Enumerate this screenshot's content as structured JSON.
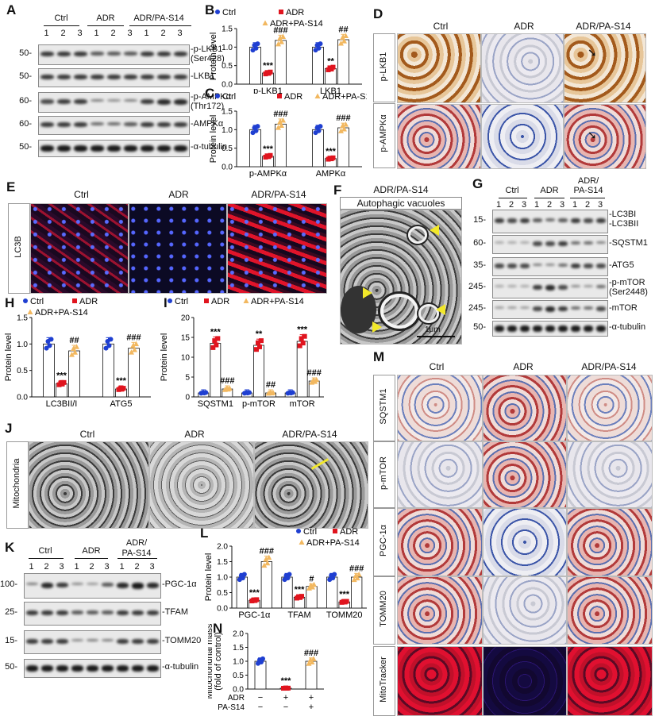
{
  "panels": {
    "A": {
      "letter": "A",
      "groups": [
        "Ctrl",
        "ADR",
        "ADR/PA-S14"
      ],
      "lanes": [
        "1",
        "2",
        "3",
        "1",
        "2",
        "3",
        "1",
        "2",
        "3"
      ],
      "rows": [
        {
          "mw": "50-",
          "label": "-p-LKB1\n(Ser428)"
        },
        {
          "mw": "50-",
          "label": "-LKB1"
        },
        {
          "mw": "60-",
          "label": "-p-AMPKα\n(Thr172)"
        },
        {
          "mw": "60-",
          "label": "-AMPKα"
        },
        {
          "mw": "50-",
          "label": "-α-tubulin"
        }
      ]
    },
    "B": {
      "letter": "B"
    },
    "C": {
      "letter": "C"
    },
    "D": {
      "letter": "D",
      "cols": [
        "Ctrl",
        "ADR",
        "ADR/PA-S14"
      ],
      "rows": [
        "p-LKB1",
        "p-AMPKα"
      ]
    },
    "E": {
      "letter": "E",
      "cols": [
        "Ctrl",
        "ADR",
        "ADR/PA-S14"
      ],
      "row": "LC3B"
    },
    "F": {
      "letter": "F",
      "title": "ADR/PA-S14",
      "box": "Autophagic vacuoles",
      "scale": "1μm"
    },
    "G": {
      "letter": "G",
      "groups": [
        "Ctrl",
        "ADR",
        "ADR/\nPA-S14"
      ],
      "lanes": [
        "1",
        "2",
        "3",
        "1",
        "2",
        "3",
        "1",
        "2",
        "3"
      ],
      "rows": [
        {
          "mw": "15-",
          "label": "-LC3BI\n-LC3BII"
        },
        {
          "mw": "60-",
          "label": "-SQSTM1"
        },
        {
          "mw": "35-",
          "label": "-ATG5"
        },
        {
          "mw": "245-",
          "label": "-p-mTOR\n(Ser2448)"
        },
        {
          "mw": "245-",
          "label": "-mTOR"
        },
        {
          "mw": "50-",
          "label": "-α-tubulin"
        }
      ]
    },
    "H": {
      "letter": "H"
    },
    "I": {
      "letter": "I"
    },
    "J": {
      "letter": "J",
      "cols": [
        "Ctrl",
        "ADR",
        "ADR/PA-S14"
      ],
      "row": "Mitochondria"
    },
    "K": {
      "letter": "K",
      "groups": [
        "Ctrl",
        "ADR",
        "ADR/\nPA-S14"
      ],
      "lanes": [
        "1",
        "2",
        "3",
        "1",
        "2",
        "3",
        "1",
        "2",
        "3"
      ],
      "rows": [
        {
          "mw": "100-",
          "label": "-PGC-1α"
        },
        {
          "mw": "25-",
          "label": "-TFAM"
        },
        {
          "mw": "15-",
          "label": "-TOMM20"
        },
        {
          "mw": "50-",
          "label": "-α-tubulin"
        }
      ]
    },
    "L": {
      "letter": "L"
    },
    "M": {
      "letter": "M",
      "cols": [
        "Ctrl",
        "ADR",
        "ADR/PA-S14"
      ],
      "rows": [
        "SQSTM1",
        "p-mTOR",
        "PGC-1α",
        "TOMM20",
        "MitoTracker"
      ]
    },
    "N": {
      "letter": "N"
    }
  },
  "colors": {
    "ctrl": "#1f3fd1",
    "adr": "#e0141e",
    "pa": "#f2b860",
    "ink": "#111111"
  },
  "chart_data": [
    {
      "panel": "B",
      "type": "bar",
      "ylabel": "Protein level",
      "categories": [
        "p-LKB1",
        "LKB1"
      ],
      "legend": [
        "Ctrl",
        "ADR",
        "ADR+PA-S14"
      ],
      "ylim": [
        0,
        1.5
      ],
      "yticks": [
        "0.0",
        "0.5",
        "1.0",
        "1.5"
      ],
      "series": [
        {
          "name": "Ctrl",
          "values": [
            1.0,
            1.0
          ]
        },
        {
          "name": "ADR",
          "values": [
            0.3,
            0.42
          ]
        },
        {
          "name": "ADR+PA-S14",
          "values": [
            1.18,
            1.2
          ]
        }
      ],
      "annotations": [
        {
          "category": "p-LKB1",
          "series": "ADR",
          "text": "***"
        },
        {
          "category": "p-LKB1",
          "series": "ADR+PA-S14",
          "text": "###"
        },
        {
          "category": "LKB1",
          "series": "ADR",
          "text": "**"
        },
        {
          "category": "LKB1",
          "series": "ADR+PA-S14",
          "text": "##"
        }
      ]
    },
    {
      "panel": "C",
      "type": "bar",
      "ylabel": "Protein level",
      "categories": [
        "p-AMPKα",
        "AMPKα"
      ],
      "legend": [
        "Ctrl",
        "ADR",
        "ADR+PA-S14"
      ],
      "ylim": [
        0,
        1.5
      ],
      "yticks": [
        "0.0",
        "0.5",
        "1.0",
        "1.5"
      ],
      "series": [
        {
          "name": "Ctrl",
          "values": [
            1.0,
            1.0
          ]
        },
        {
          "name": "ADR",
          "values": [
            0.28,
            0.22
          ]
        },
        {
          "name": "ADR+PA-S14",
          "values": [
            1.15,
            1.05
          ]
        }
      ],
      "annotations": [
        {
          "category": "p-AMPKα",
          "series": "ADR",
          "text": "***"
        },
        {
          "category": "p-AMPKα",
          "series": "ADR+PA-S14",
          "text": "###"
        },
        {
          "category": "AMPKα",
          "series": "ADR",
          "text": "***"
        },
        {
          "category": "AMPKα",
          "series": "ADR+PA-S14",
          "text": "###"
        }
      ]
    },
    {
      "panel": "H",
      "type": "bar",
      "ylabel": "Protein level",
      "categories": [
        "LC3BII/I",
        "ATG5"
      ],
      "legend": [
        "Ctrl",
        "ADR",
        "ADR+PA-S14"
      ],
      "ylim": [
        0,
        1.5
      ],
      "yticks": [
        "0.0",
        "0.5",
        "1.0",
        "1.5"
      ],
      "series": [
        {
          "name": "Ctrl",
          "values": [
            1.0,
            1.0
          ]
        },
        {
          "name": "ADR",
          "values": [
            0.25,
            0.15
          ]
        },
        {
          "name": "ADR+PA-S14",
          "values": [
            0.87,
            0.92
          ]
        }
      ],
      "annotations": [
        {
          "category": "LC3BII/I",
          "series": "ADR",
          "text": "***"
        },
        {
          "category": "LC3BII/I",
          "series": "ADR+PA-S14",
          "text": "##"
        },
        {
          "category": "ATG5",
          "series": "ADR",
          "text": "***"
        },
        {
          "category": "ATG5",
          "series": "ADR+PA-S14",
          "text": "###"
        }
      ]
    },
    {
      "panel": "I",
      "type": "bar",
      "ylabel": "Protein level",
      "categories": [
        "SQSTM1",
        "p-mTOR",
        "mTOR"
      ],
      "legend": [
        "Ctrl",
        "ADR",
        "ADR+PA-S14"
      ],
      "ylim": [
        0,
        20
      ],
      "yticks": [
        "0",
        "5",
        "10",
        "15",
        "20"
      ],
      "series": [
        {
          "name": "Ctrl",
          "values": [
            1.0,
            1.0,
            1.0
          ]
        },
        {
          "name": "ADR",
          "values": [
            13.5,
            13.0,
            14.0
          ]
        },
        {
          "name": "ADR+PA-S14",
          "values": [
            2.0,
            1.0,
            4.0
          ]
        }
      ],
      "annotations": [
        {
          "category": "SQSTM1",
          "series": "ADR",
          "text": "***"
        },
        {
          "category": "SQSTM1",
          "series": "ADR+PA-S14",
          "text": "###"
        },
        {
          "category": "p-mTOR",
          "series": "ADR",
          "text": "**"
        },
        {
          "category": "p-mTOR",
          "series": "ADR+PA-S14",
          "text": "##"
        },
        {
          "category": "mTOR",
          "series": "ADR",
          "text": "***"
        },
        {
          "category": "mTOR",
          "series": "ADR+PA-S14",
          "text": "###"
        }
      ]
    },
    {
      "panel": "L",
      "type": "bar",
      "ylabel": "Protein level",
      "categories": [
        "PGC-1α",
        "TFAM",
        "TOMM20"
      ],
      "legend": [
        "Ctrl",
        "ADR",
        "ADR+PA-S14"
      ],
      "ylim": [
        0,
        2.0
      ],
      "yticks": [
        "0.0",
        "0.5",
        "1.0",
        "1.5",
        "2.0"
      ],
      "series": [
        {
          "name": "Ctrl",
          "values": [
            1.0,
            1.0,
            1.0
          ]
        },
        {
          "name": "ADR",
          "values": [
            0.25,
            0.35,
            0.2
          ]
        },
        {
          "name": "ADR+PA-S14",
          "values": [
            1.5,
            0.7,
            1.0
          ]
        }
      ],
      "annotations": [
        {
          "category": "PGC-1α",
          "series": "ADR",
          "text": "***"
        },
        {
          "category": "PGC-1α",
          "series": "ADR+PA-S14",
          "text": "###"
        },
        {
          "category": "TFAM",
          "series": "ADR",
          "text": "***"
        },
        {
          "category": "TFAM",
          "series": "ADR+PA-S14",
          "text": "#"
        },
        {
          "category": "TOMM20",
          "series": "ADR",
          "text": "***"
        },
        {
          "category": "TOMM20",
          "series": "ADR+PA-S14",
          "text": "###"
        }
      ]
    },
    {
      "panel": "N",
      "type": "bar",
      "ylabel": "Mitochondrial mass\n(fold of control)",
      "categories": [
        "Ctrl",
        "ADR",
        "ADR+PA-S14"
      ],
      "ylim": [
        0,
        2.0
      ],
      "yticks": [
        "0.0",
        "0.5",
        "1.0",
        "1.5",
        "2.0"
      ],
      "series": [
        {
          "values": [
            1.0,
            0.03,
            1.0
          ]
        }
      ],
      "rows": [
        {
          "label": "ADR",
          "values": [
            "−",
            "+",
            "+"
          ]
        },
        {
          "label": "PA-S14",
          "values": [
            "−",
            "−",
            "+"
          ]
        }
      ],
      "annotations": [
        {
          "category": "ADR",
          "text": "***"
        },
        {
          "category": "ADR+PA-S14",
          "text": "###"
        }
      ]
    }
  ]
}
